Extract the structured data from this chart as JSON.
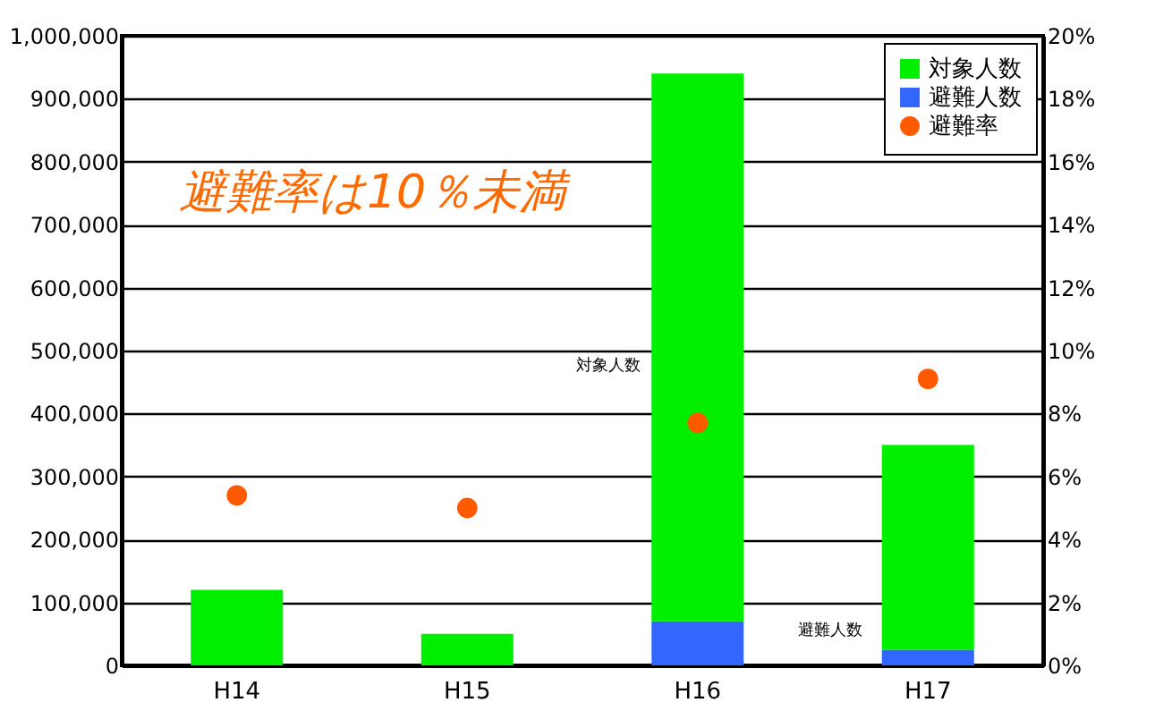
{
  "chart_data": {
    "type": "bar",
    "stacked": true,
    "categories": [
      "H14",
      "H15",
      "H16",
      "H17"
    ],
    "series": [
      {
        "name": "避難人数",
        "color": "#3366ff",
        "values": [
          0,
          0,
          70000,
          25000
        ]
      },
      {
        "name": "対象人数",
        "color": "#00ee00",
        "values": [
          120000,
          50000,
          870000,
          325000
        ]
      },
      {
        "name": "避難率",
        "type": "scatter",
        "axis": "y2",
        "color": "#ff5a00",
        "values": [
          5.4,
          5.0,
          7.7,
          9.1
        ]
      }
    ],
    "ylim": [
      0,
      1000000
    ],
    "yticks": [
      {
        "value": 0,
        "label": "0"
      },
      {
        "value": 100000,
        "label": "100,000"
      },
      {
        "value": 200000,
        "label": "200,000"
      },
      {
        "value": 300000,
        "label": "300,000"
      },
      {
        "value": 400000,
        "label": "400,000"
      },
      {
        "value": 500000,
        "label": "500,000"
      },
      {
        "value": 600000,
        "label": "600,000"
      },
      {
        "value": 700000,
        "label": "700,000"
      },
      {
        "value": 800000,
        "label": "800,000"
      },
      {
        "value": 900000,
        "label": "900,000"
      },
      {
        "value": 1000000,
        "label": "1,000,000"
      }
    ],
    "y2lim": [
      0,
      20
    ],
    "y2ticks": [
      {
        "value": 0,
        "label": "0%"
      },
      {
        "value": 2,
        "label": "2%"
      },
      {
        "value": 4,
        "label": "4%"
      },
      {
        "value": 6,
        "label": "6%"
      },
      {
        "value": 8,
        "label": "8%"
      },
      {
        "value": 10,
        "label": "10%"
      },
      {
        "value": 12,
        "label": "12%"
      },
      {
        "value": 14,
        "label": "14%"
      },
      {
        "value": 16,
        "label": "16%"
      },
      {
        "value": 18,
        "label": "18%"
      },
      {
        "value": 20,
        "label": "20%"
      }
    ],
    "grid": "y",
    "legend": "top right",
    "marker": "circle",
    "annotations": [
      "避難率は10％未満",
      "対象人数",
      "避難人数"
    ]
  }
}
